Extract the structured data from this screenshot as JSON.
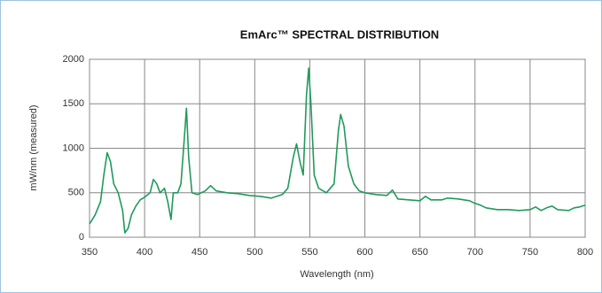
{
  "chart_data": {
    "type": "line",
    "title": "EmArc™ SPECTRAL DISTRIBUTION",
    "x_label": "Wavelength (nm)",
    "y_label": "mW/nm (measured)",
    "x": [
      350,
      355,
      360,
      363,
      366,
      369,
      372,
      376,
      380,
      382,
      385,
      388,
      392,
      396,
      400,
      405,
      408,
      411,
      414,
      418,
      421,
      424,
      426,
      430,
      433,
      436,
      438,
      440,
      443,
      448,
      455,
      460,
      465,
      475,
      485,
      495,
      505,
      515,
      525,
      530,
      535,
      538,
      541,
      544,
      547,
      549,
      551,
      554,
      558,
      565,
      572,
      576,
      578,
      581,
      585,
      590,
      595,
      600,
      610,
      620,
      625,
      630,
      640,
      650,
      655,
      660,
      670,
      675,
      685,
      695,
      700,
      705,
      710,
      720,
      730,
      740,
      750,
      755,
      760,
      765,
      770,
      775,
      785,
      790,
      795,
      800
    ],
    "series": [
      {
        "name": "EmArc",
        "color": "#1f9a5c",
        "values": [
          150,
          250,
          400,
          700,
          950,
          850,
          600,
          500,
          300,
          50,
          100,
          250,
          350,
          420,
          450,
          500,
          650,
          600,
          500,
          550,
          400,
          200,
          500,
          500,
          600,
          1100,
          1450,
          900,
          500,
          480,
          520,
          580,
          520,
          500,
          490,
          470,
          460,
          440,
          480,
          550,
          900,
          1050,
          850,
          700,
          1600,
          1900,
          1500,
          700,
          550,
          500,
          600,
          1200,
          1380,
          1250,
          800,
          600,
          520,
          500,
          480,
          470,
          530,
          430,
          420,
          410,
          460,
          420,
          420,
          440,
          430,
          410,
          380,
          360,
          330,
          310,
          310,
          300,
          310,
          340,
          300,
          330,
          350,
          310,
          300,
          330,
          340,
          360
        ]
      }
    ],
    "xlim": [
      350,
      800
    ],
    "xticks": [
      350,
      400,
      450,
      500,
      550,
      600,
      650,
      700,
      750,
      800
    ],
    "ylim": [
      0,
      2000
    ],
    "yticks": [
      0,
      500,
      1000,
      1500,
      2000
    ],
    "grid": true
  }
}
